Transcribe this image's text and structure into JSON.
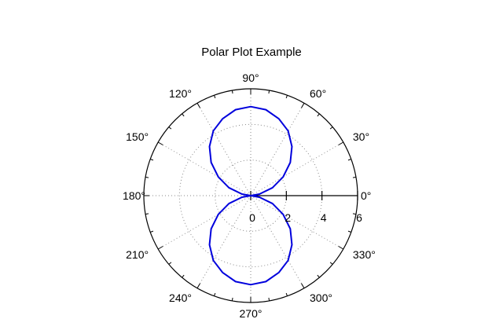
{
  "chart_data": {
    "type": "line",
    "projection": "polar",
    "title": "Polar Plot Example",
    "angle_unit": "degrees",
    "angle_ticks": [
      0,
      30,
      60,
      90,
      120,
      150,
      180,
      210,
      240,
      270,
      300,
      330
    ],
    "angle_tick_labels": [
      "0°",
      "30°",
      "60°",
      "90°",
      "120°",
      "150°",
      "180°",
      "210°",
      "240°",
      "270°",
      "300°",
      "330°"
    ],
    "radial_ticks": [
      0,
      2,
      4,
      6
    ],
    "radial_tick_labels": [
      "0",
      "2",
      "4",
      "6"
    ],
    "rlim": [
      0,
      6
    ],
    "grid": true,
    "line_color": "#0000dd",
    "series": [
      {
        "theta": [
          0,
          10,
          20,
          30,
          40,
          50,
          60,
          70,
          80,
          90,
          100,
          110,
          120,
          130,
          140,
          150,
          160,
          170,
          180,
          190,
          200,
          210,
          220,
          230,
          240,
          250,
          260,
          270,
          280,
          290,
          300,
          310,
          320,
          330,
          340,
          350,
          360
        ],
        "r": [
          0.0,
          0.5,
          1.3,
          2.1,
          2.9,
          3.6,
          4.2,
          4.6,
          4.9,
          5.0,
          4.9,
          4.6,
          4.2,
          3.6,
          2.9,
          2.1,
          1.3,
          0.5,
          0.0,
          0.5,
          1.3,
          2.1,
          2.9,
          3.6,
          4.2,
          4.6,
          4.9,
          5.0,
          4.9,
          4.6,
          4.2,
          3.6,
          2.9,
          2.1,
          1.3,
          0.5,
          0.0
        ]
      }
    ]
  }
}
